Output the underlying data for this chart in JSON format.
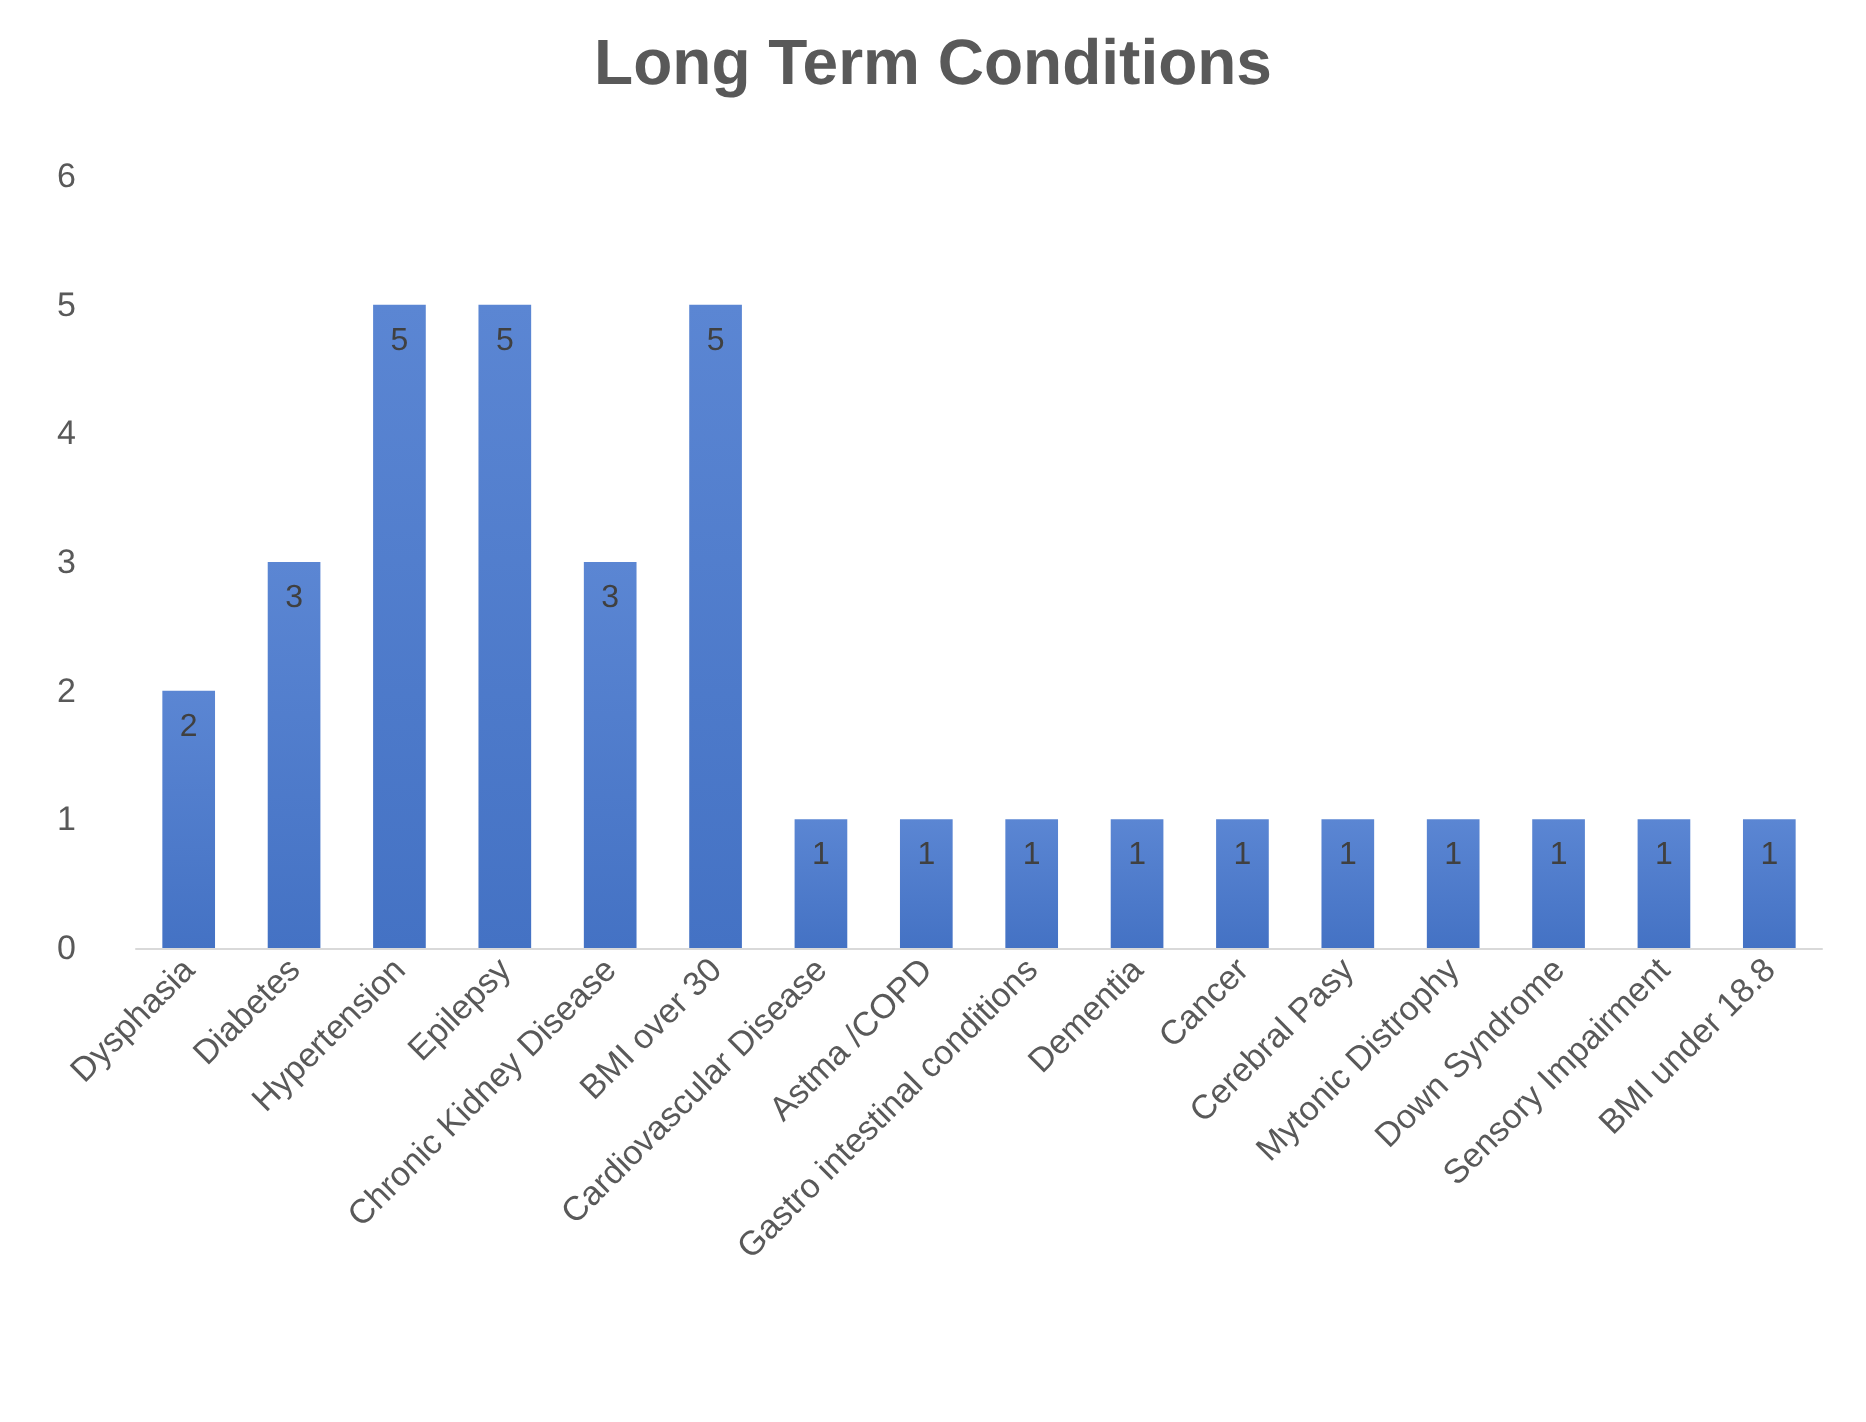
{
  "chart_data": {
    "type": "bar",
    "title": "Long Term Conditions",
    "categories": [
      "Dysphasia",
      "Diabetes",
      "Hypertension",
      "Epilepsy",
      "Chronic Kidney Disease",
      "BMI over 30",
      "Cardiovascular Disease",
      "Astma /COPD",
      "Gastro intestinal conditions",
      "Dementia",
      "Cancer",
      "Cerebral Pasy",
      "Mytonic Distrophy",
      "Down Syndrome",
      "Sensory Impairment",
      "BMI under 18.8"
    ],
    "values": [
      2,
      3,
      5,
      5,
      3,
      5,
      1,
      1,
      1,
      1,
      1,
      1,
      1,
      1,
      1,
      1
    ],
    "color": "#4472c4",
    "ylim": [
      0,
      6
    ],
    "yticks": [
      0,
      1,
      2,
      3,
      4,
      5,
      6
    ],
    "grid": false,
    "data_labels": true
  }
}
